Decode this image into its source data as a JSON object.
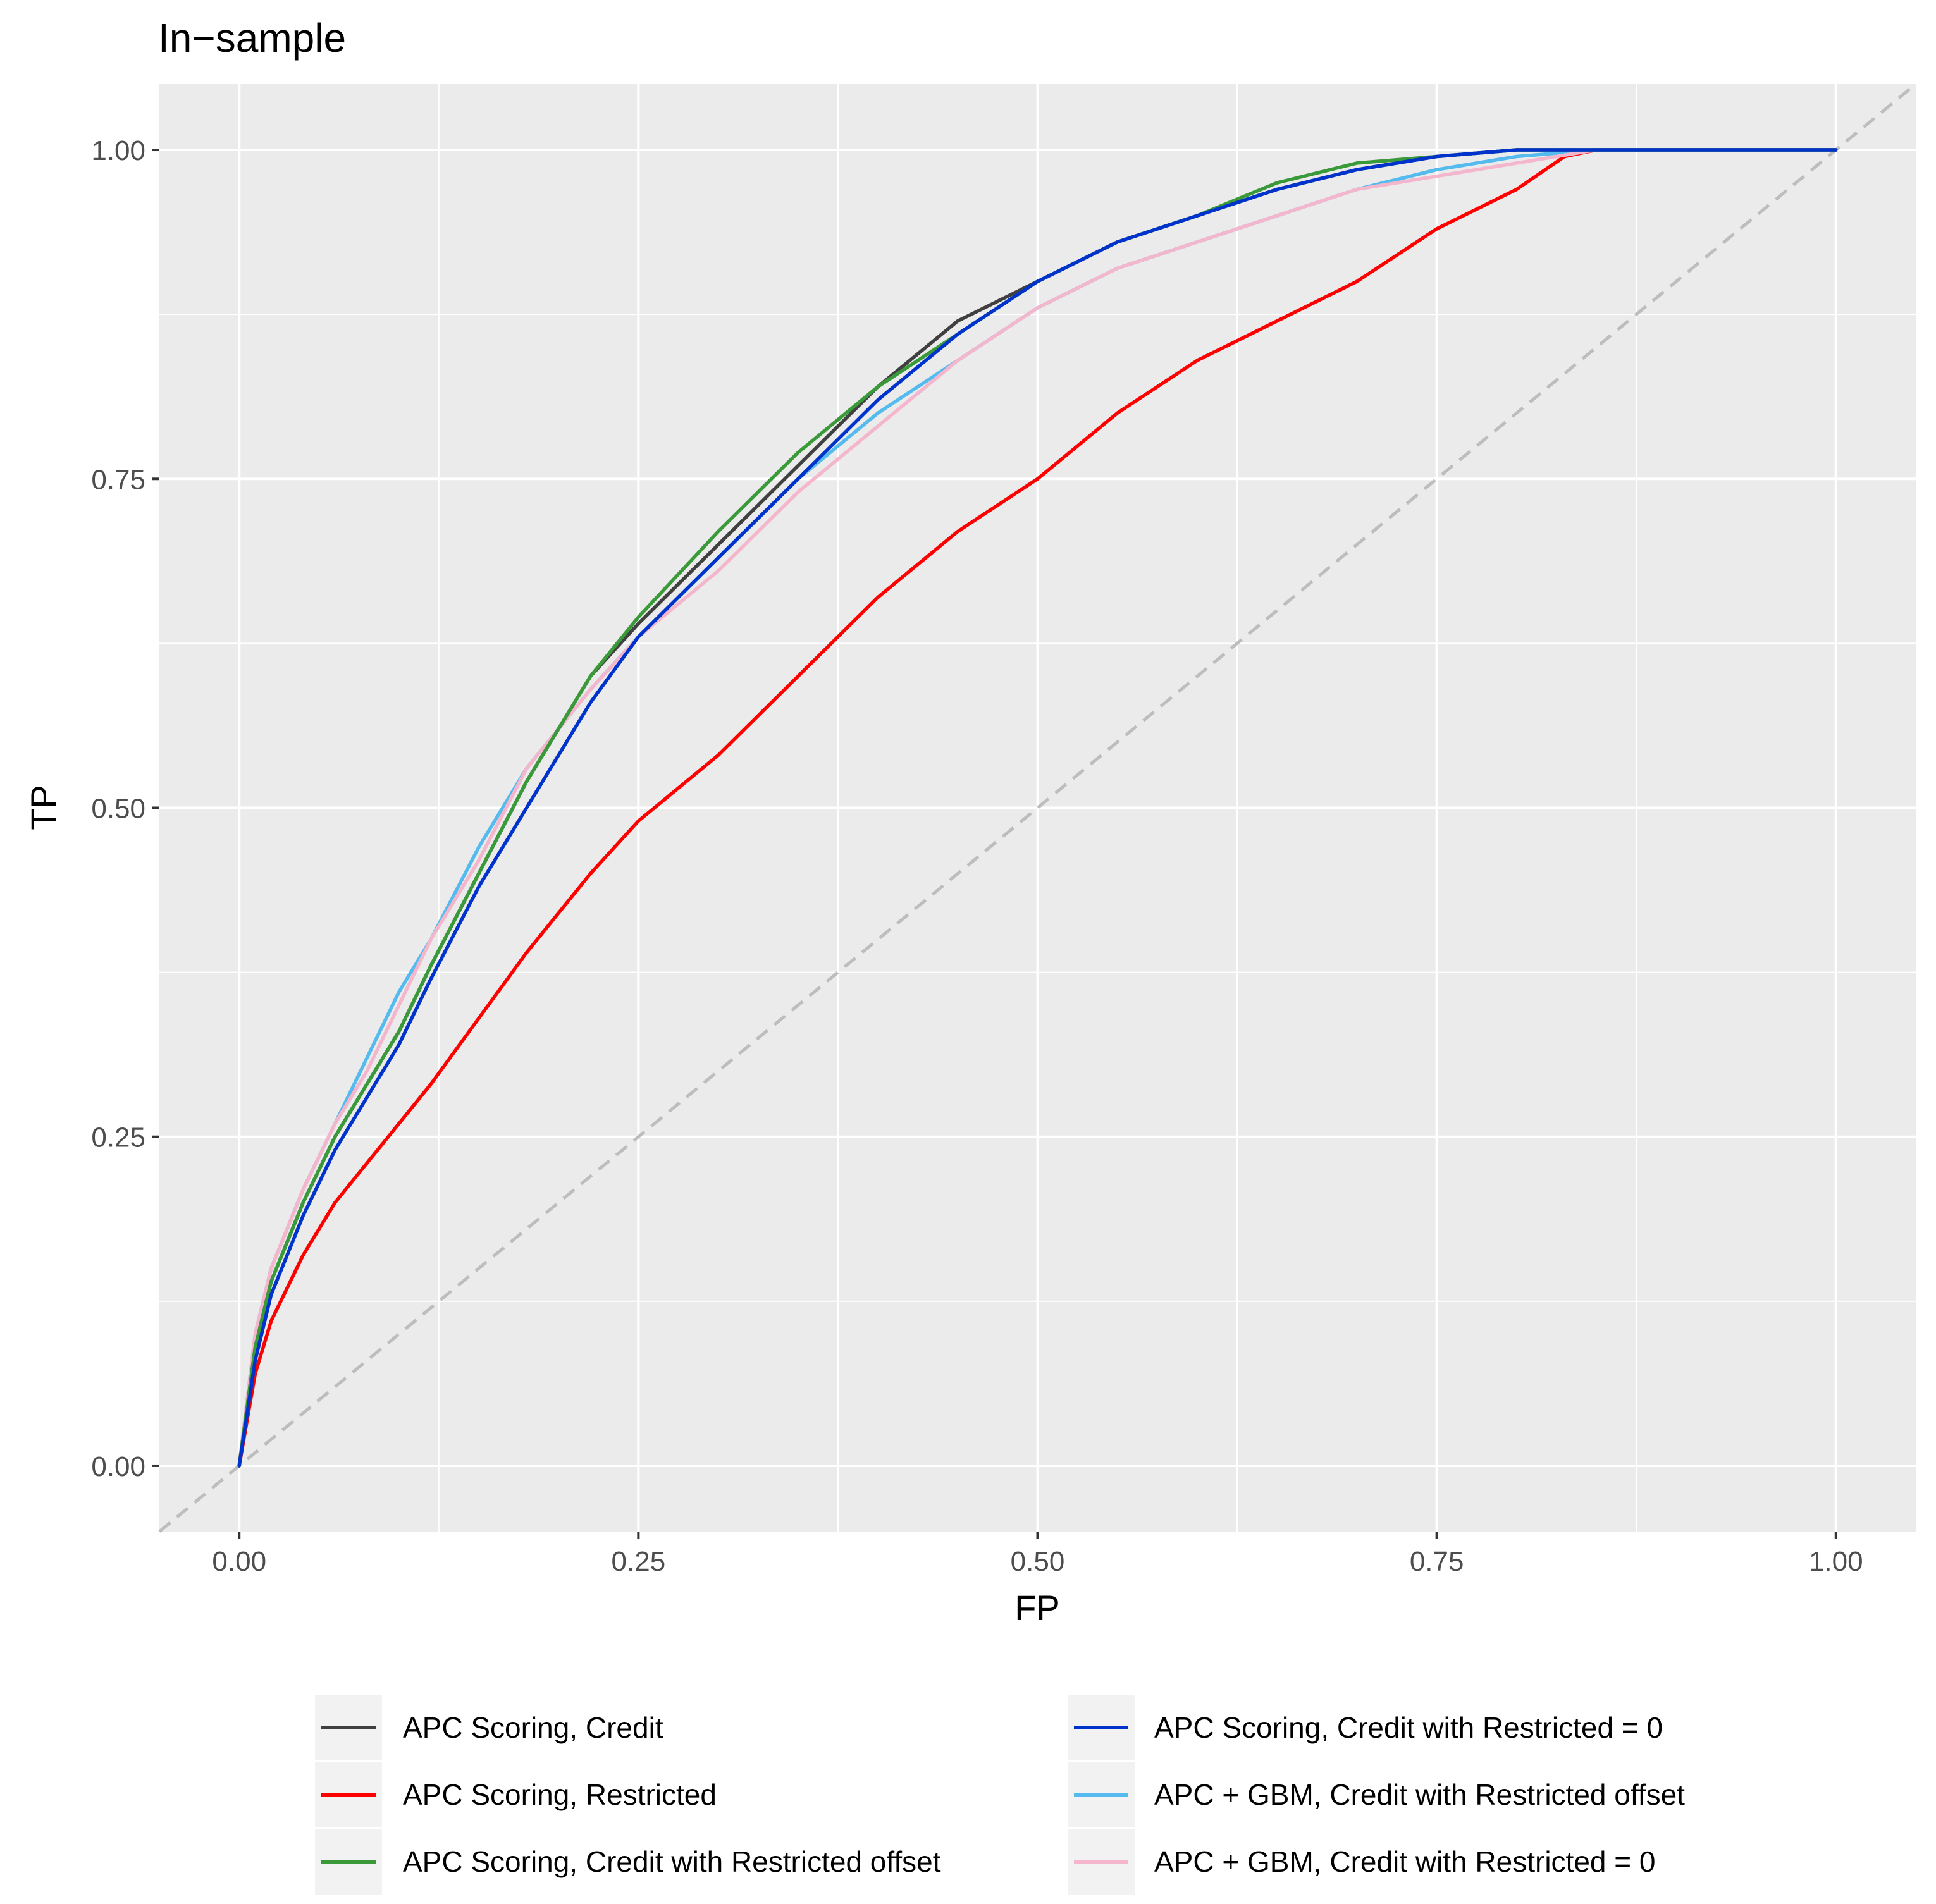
{
  "chart_data": {
    "type": "line",
    "title": "In−sample",
    "xlabel": "FP",
    "ylabel": "TP",
    "xlim": [
      -0.05,
      1.05
    ],
    "ylim": [
      -0.05,
      1.05
    ],
    "x_ticks": [
      "0.00",
      "0.25",
      "0.50",
      "0.75",
      "1.00"
    ],
    "y_ticks": [
      "0.00",
      "0.25",
      "0.50",
      "0.75",
      "1.00"
    ],
    "grid": true,
    "legend_position": "bottom",
    "reference_line": {
      "x": [
        0,
        1
      ],
      "y": [
        0,
        1
      ],
      "style": "dashed",
      "color": "#bdbdbd"
    },
    "series": [
      {
        "name": "APC Scoring, Credit",
        "color": "#404040",
        "x": [
          0,
          0.01,
          0.02,
          0.04,
          0.06,
          0.08,
          0.1,
          0.12,
          0.15,
          0.18,
          0.22,
          0.25,
          0.3,
          0.35,
          0.4,
          0.45,
          0.5,
          0.55,
          0.6,
          0.65,
          0.7,
          0.75,
          0.8,
          0.85,
          1.0
        ],
        "y": [
          0,
          0.09,
          0.14,
          0.2,
          0.25,
          0.29,
          0.33,
          0.38,
          0.45,
          0.52,
          0.6,
          0.64,
          0.7,
          0.76,
          0.82,
          0.87,
          0.9,
          0.93,
          0.95,
          0.97,
          0.985,
          0.995,
          1.0,
          1.0,
          1.0
        ]
      },
      {
        "name": "APC Scoring, Restricted",
        "color": "#ff0000",
        "x": [
          0,
          0.01,
          0.02,
          0.04,
          0.06,
          0.08,
          0.1,
          0.12,
          0.15,
          0.18,
          0.22,
          0.25,
          0.3,
          0.35,
          0.4,
          0.45,
          0.5,
          0.55,
          0.6,
          0.65,
          0.7,
          0.75,
          0.8,
          0.83,
          0.85,
          1.0
        ],
        "y": [
          0,
          0.07,
          0.11,
          0.16,
          0.2,
          0.23,
          0.26,
          0.29,
          0.34,
          0.39,
          0.45,
          0.49,
          0.54,
          0.6,
          0.66,
          0.71,
          0.75,
          0.8,
          0.84,
          0.87,
          0.9,
          0.94,
          0.97,
          0.995,
          1.0,
          1.0
        ]
      },
      {
        "name": "APC Scoring, Credit with Restricted offset",
        "color": "#3a9a3a",
        "x": [
          0,
          0.01,
          0.02,
          0.04,
          0.06,
          0.08,
          0.1,
          0.12,
          0.15,
          0.18,
          0.22,
          0.25,
          0.3,
          0.35,
          0.4,
          0.45,
          0.5,
          0.55,
          0.6,
          0.65,
          0.7,
          0.75,
          0.8,
          0.85,
          1.0
        ],
        "y": [
          0,
          0.09,
          0.14,
          0.2,
          0.25,
          0.29,
          0.33,
          0.38,
          0.45,
          0.52,
          0.6,
          0.645,
          0.71,
          0.77,
          0.82,
          0.86,
          0.9,
          0.93,
          0.95,
          0.975,
          0.99,
          0.995,
          1.0,
          1.0,
          1.0
        ]
      },
      {
        "name": "APC Scoring, Credit with Restricted = 0",
        "color": "#0033cc",
        "x": [
          0,
          0.01,
          0.02,
          0.04,
          0.06,
          0.08,
          0.1,
          0.12,
          0.15,
          0.18,
          0.22,
          0.25,
          0.3,
          0.35,
          0.4,
          0.45,
          0.5,
          0.55,
          0.6,
          0.65,
          0.7,
          0.75,
          0.8,
          0.85,
          1.0
        ],
        "y": [
          0,
          0.08,
          0.13,
          0.19,
          0.24,
          0.28,
          0.32,
          0.37,
          0.44,
          0.5,
          0.58,
          0.63,
          0.69,
          0.75,
          0.81,
          0.86,
          0.9,
          0.93,
          0.95,
          0.97,
          0.985,
          0.995,
          1.0,
          1.0,
          1.0
        ]
      },
      {
        "name": "APC + GBM, Credit with Restricted offset",
        "color": "#55bbee",
        "x": [
          0,
          0.01,
          0.02,
          0.04,
          0.06,
          0.08,
          0.1,
          0.12,
          0.15,
          0.18,
          0.22,
          0.25,
          0.3,
          0.35,
          0.4,
          0.45,
          0.5,
          0.55,
          0.6,
          0.65,
          0.7,
          0.75,
          0.8,
          0.85,
          1.0
        ],
        "y": [
          0,
          0.1,
          0.15,
          0.21,
          0.26,
          0.31,
          0.36,
          0.4,
          0.47,
          0.53,
          0.59,
          0.63,
          0.69,
          0.75,
          0.8,
          0.84,
          0.88,
          0.91,
          0.93,
          0.95,
          0.97,
          0.985,
          0.995,
          1.0,
          1.0
        ]
      },
      {
        "name": "APC + GBM, Credit with Restricted = 0",
        "color": "#f4b6cc",
        "x": [
          0,
          0.01,
          0.02,
          0.04,
          0.06,
          0.08,
          0.1,
          0.12,
          0.15,
          0.18,
          0.22,
          0.25,
          0.3,
          0.35,
          0.4,
          0.45,
          0.5,
          0.55,
          0.6,
          0.65,
          0.7,
          0.75,
          0.8,
          0.85,
          1.0
        ],
        "y": [
          0,
          0.1,
          0.15,
          0.21,
          0.26,
          0.3,
          0.35,
          0.4,
          0.46,
          0.53,
          0.59,
          0.63,
          0.68,
          0.74,
          0.79,
          0.84,
          0.88,
          0.91,
          0.93,
          0.95,
          0.97,
          0.98,
          0.99,
          1.0,
          1.0
        ]
      }
    ]
  }
}
